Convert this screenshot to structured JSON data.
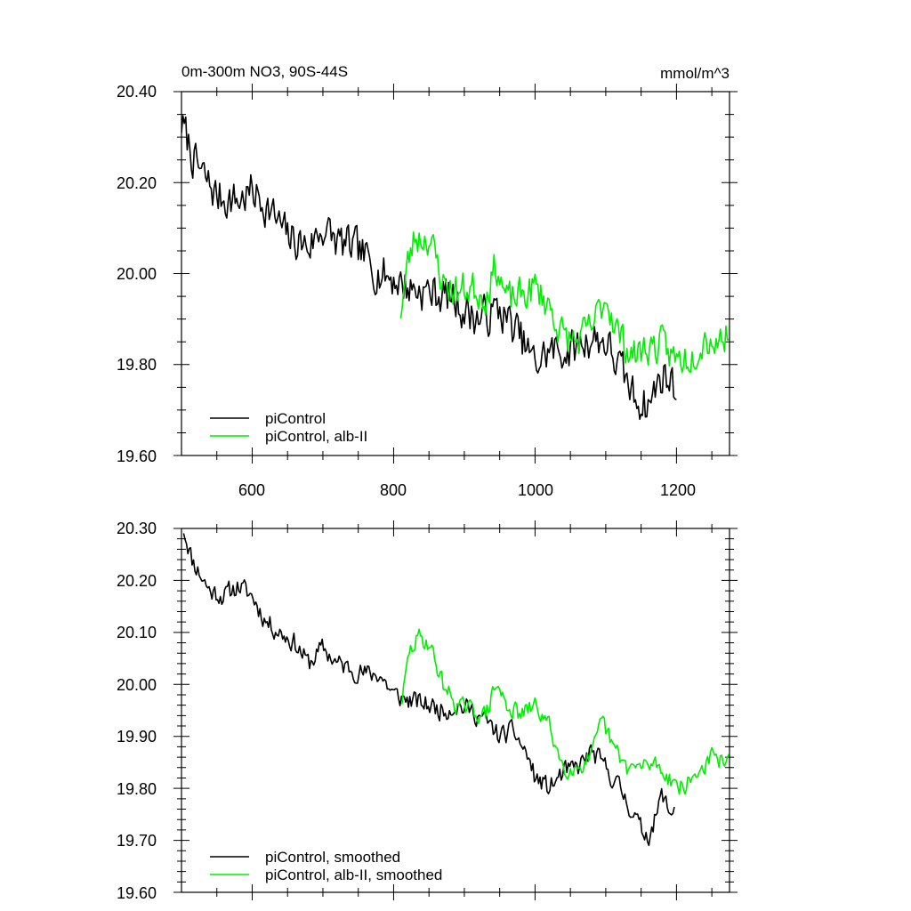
{
  "chart_data": [
    {
      "type": "line",
      "title": "0m-300m NO3, 90S-44S",
      "units": "mmol/m^3",
      "xlim": [
        500,
        1275
      ],
      "ylim": [
        19.6,
        20.4
      ],
      "xticks": [
        600,
        800,
        1000,
        1200
      ],
      "xtick_labels": [
        "600",
        "800",
        "1000",
        "1200"
      ],
      "yticks": [
        19.6,
        19.8,
        20.0,
        20.2,
        20.4
      ],
      "ytick_labels": [
        "19.60",
        "19.80",
        "20.00",
        "20.20",
        "20.40"
      ],
      "series": [
        {
          "name": "piControl",
          "color": "#000000",
          "noise": 0.045,
          "seed": 7,
          "points": [
            [
              500,
              20.33
            ],
            [
              520,
              20.24
            ],
            [
              550,
              20.17
            ],
            [
              580,
              20.16
            ],
            [
              600,
              20.18
            ],
            [
              620,
              20.15
            ],
            [
              650,
              20.08
            ],
            [
              680,
              20.06
            ],
            [
              700,
              20.1
            ],
            [
              720,
              20.07
            ],
            [
              750,
              20.05
            ],
            [
              780,
              20.0
            ],
            [
              800,
              19.99
            ],
            [
              820,
              19.97
            ],
            [
              850,
              19.96
            ],
            [
              880,
              19.95
            ],
            [
              900,
              19.92
            ],
            [
              920,
              19.9
            ],
            [
              950,
              19.92
            ],
            [
              975,
              19.87
            ],
            [
              1000,
              19.8
            ],
            [
              1020,
              19.83
            ],
            [
              1050,
              19.83
            ],
            [
              1080,
              19.86
            ],
            [
              1100,
              19.85
            ],
            [
              1120,
              19.79
            ],
            [
              1140,
              19.73
            ],
            [
              1160,
              19.71
            ],
            [
              1180,
              19.78
            ],
            [
              1200,
              19.75
            ]
          ]
        },
        {
          "name": "piControl, alb-II",
          "color": "#00ee00",
          "noise": 0.04,
          "seed": 23,
          "points": [
            [
              810,
              19.92
            ],
            [
              820,
              20.02
            ],
            [
              830,
              20.08
            ],
            [
              850,
              20.08
            ],
            [
              870,
              19.98
            ],
            [
              890,
              19.96
            ],
            [
              910,
              19.97
            ],
            [
              930,
              19.95
            ],
            [
              945,
              20.02
            ],
            [
              960,
              19.94
            ],
            [
              980,
              19.95
            ],
            [
              1000,
              19.97
            ],
            [
              1020,
              19.93
            ],
            [
              1040,
              19.86
            ],
            [
              1060,
              19.85
            ],
            [
              1080,
              19.88
            ],
            [
              1100,
              19.95
            ],
            [
              1120,
              19.86
            ],
            [
              1140,
              19.82
            ],
            [
              1160,
              19.84
            ],
            [
              1180,
              19.84
            ],
            [
              1200,
              19.81
            ],
            [
              1220,
              19.82
            ],
            [
              1240,
              19.86
            ],
            [
              1260,
              19.85
            ],
            [
              1275,
              19.88
            ]
          ]
        }
      ]
    },
    {
      "type": "line",
      "xlim": [
        500,
        1275
      ],
      "ylim": [
        19.6,
        20.3
      ],
      "xticks": [
        600,
        800,
        1000,
        1200
      ],
      "yticks": [
        19.6,
        19.7,
        19.8,
        19.9,
        20.0,
        20.1,
        20.2,
        20.3
      ],
      "ytick_labels": [
        "19.60",
        "19.70",
        "19.80",
        "19.90",
        "20.00",
        "20.10",
        "20.20",
        "20.30"
      ],
      "series": [
        {
          "name": "piControl, smoothed",
          "color": "#000000",
          "noise": 0.02,
          "seed": 11,
          "points": [
            [
              503,
              20.3
            ],
            [
              515,
              20.24
            ],
            [
              540,
              20.18
            ],
            [
              560,
              20.17
            ],
            [
              580,
              20.19
            ],
            [
              600,
              20.17
            ],
            [
              620,
              20.12
            ],
            [
              640,
              20.1
            ],
            [
              660,
              20.08
            ],
            [
              680,
              20.04
            ],
            [
              700,
              20.07
            ],
            [
              720,
              20.04
            ],
            [
              740,
              20.03
            ],
            [
              760,
              20.02
            ],
            [
              780,
              20.02
            ],
            [
              800,
              19.98
            ],
            [
              820,
              19.97
            ],
            [
              850,
              19.96
            ],
            [
              870,
              19.95
            ],
            [
              890,
              19.96
            ],
            [
              910,
              19.95
            ],
            [
              930,
              19.93
            ],
            [
              950,
              19.9
            ],
            [
              970,
              19.91
            ],
            [
              990,
              19.86
            ],
            [
              1000,
              19.82
            ],
            [
              1020,
              19.8
            ],
            [
              1040,
              19.83
            ],
            [
              1060,
              19.84
            ],
            [
              1080,
              19.87
            ],
            [
              1100,
              19.84
            ],
            [
              1120,
              19.8
            ],
            [
              1140,
              19.75
            ],
            [
              1150,
              19.72
            ],
            [
              1160,
              19.71
            ],
            [
              1170,
              19.74
            ],
            [
              1180,
              19.79
            ],
            [
              1190,
              19.75
            ],
            [
              1198,
              19.77
            ]
          ]
        },
        {
          "name": "piControl, alb-II, smoothed",
          "color": "#00ee00",
          "noise": 0.018,
          "seed": 29,
          "points": [
            [
              812,
              19.97
            ],
            [
              822,
              20.06
            ],
            [
              835,
              20.09
            ],
            [
              850,
              20.08
            ],
            [
              870,
              20.0
            ],
            [
              890,
              19.96
            ],
            [
              910,
              19.95
            ],
            [
              930,
              19.94
            ],
            [
              945,
              20.0
            ],
            [
              960,
              19.96
            ],
            [
              980,
              19.94
            ],
            [
              1000,
              19.96
            ],
            [
              1020,
              19.92
            ],
            [
              1040,
              19.84
            ],
            [
              1060,
              19.84
            ],
            [
              1080,
              19.86
            ],
            [
              1095,
              19.93
            ],
            [
              1110,
              19.88
            ],
            [
              1130,
              19.84
            ],
            [
              1150,
              19.84
            ],
            [
              1170,
              19.85
            ],
            [
              1190,
              19.82
            ],
            [
              1210,
              19.8
            ],
            [
              1230,
              19.83
            ],
            [
              1250,
              19.86
            ],
            [
              1265,
              19.85
            ],
            [
              1275,
              19.88
            ]
          ]
        }
      ]
    }
  ]
}
